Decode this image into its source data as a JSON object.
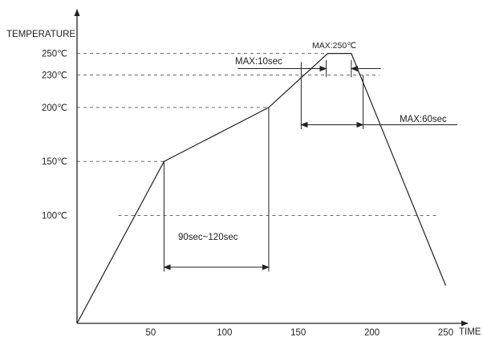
{
  "chart_data": {
    "type": "line",
    "xlabel": "TIME",
    "ylabel": "TEMPERATURE",
    "xlim": [
      0,
      265
    ],
    "ylim": [
      0,
      265
    ],
    "x_ticks": [
      {
        "value": 50,
        "label": "50"
      },
      {
        "value": 100,
        "label": "100"
      },
      {
        "value": 150,
        "label": "150"
      },
      {
        "value": 200,
        "label": "200"
      },
      {
        "value": 250,
        "label": "250"
      }
    ],
    "y_ticks": [
      {
        "value": 100,
        "label": "100℃"
      },
      {
        "value": 150,
        "label": "150℃"
      },
      {
        "value": 200,
        "label": "200℃"
      },
      {
        "value": 230,
        "label": "230℃"
      },
      {
        "value": 250,
        "label": "250℃"
      }
    ],
    "series": [
      {
        "x": [
          0,
          59,
          130,
          170,
          186,
          250
        ],
        "y": [
          0,
          150,
          200,
          250,
          250,
          35
        ]
      }
    ],
    "annotations": {
      "max_peak": "MAX:250℃",
      "max_10": "MAX:10sec",
      "max_60": "MAX:60sec",
      "soak": "90sec~120sec"
    }
  }
}
